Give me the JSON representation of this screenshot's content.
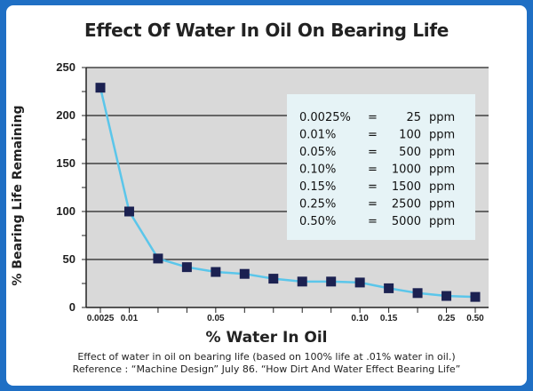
{
  "chart_data": {
    "type": "line",
    "title": "Effect Of Water In Oil On Bearing Life",
    "xlabel": "% Water In Oil",
    "ylabel": "% Bearing Life Remaining",
    "ylim": [
      0,
      250
    ],
    "yticks": [
      0,
      50,
      100,
      150,
      200,
      250
    ],
    "grid": true,
    "x_tick_labels": [
      "0.0025",
      "0.01",
      "0.05",
      "0.10",
      "0.15",
      "0.25",
      "0.50"
    ],
    "series": [
      {
        "values": [
          229,
          100,
          51,
          42,
          37,
          35,
          30,
          27,
          27,
          26,
          20,
          15,
          12,
          11
        ],
        "color": "#5bc6ea",
        "marker_color": "#1b2151"
      }
    ],
    "conversion_table": [
      {
        "percent": "0.0025%",
        "eq": "=",
        "ppm": "25",
        "unit": "ppm"
      },
      {
        "percent": "0.01%",
        "eq": "=",
        "ppm": "100",
        "unit": "ppm"
      },
      {
        "percent": "0.05%",
        "eq": "=",
        "ppm": "500",
        "unit": "ppm"
      },
      {
        "percent": "0.10%",
        "eq": "=",
        "ppm": "1000",
        "unit": "ppm"
      },
      {
        "percent": "0.15%",
        "eq": "=",
        "ppm": "1500",
        "unit": "ppm"
      },
      {
        "percent": "0.25%",
        "eq": "=",
        "ppm": "2500",
        "unit": "ppm"
      },
      {
        "percent": "0.50%",
        "eq": "=",
        "ppm": "5000",
        "unit": "ppm"
      }
    ],
    "caption_line1": "Effect of water in oil on bearing life (based on 100% life at .01% water in oil.)",
    "caption_line2": "Reference : “Machine Design” July 86. “How Dirt And Water Effect Bearing Life”"
  },
  "colors": {
    "frame_border": "#1f6fc4",
    "plot_bg": "#d9d9d9",
    "table_bg": "#e6f3f6"
  }
}
